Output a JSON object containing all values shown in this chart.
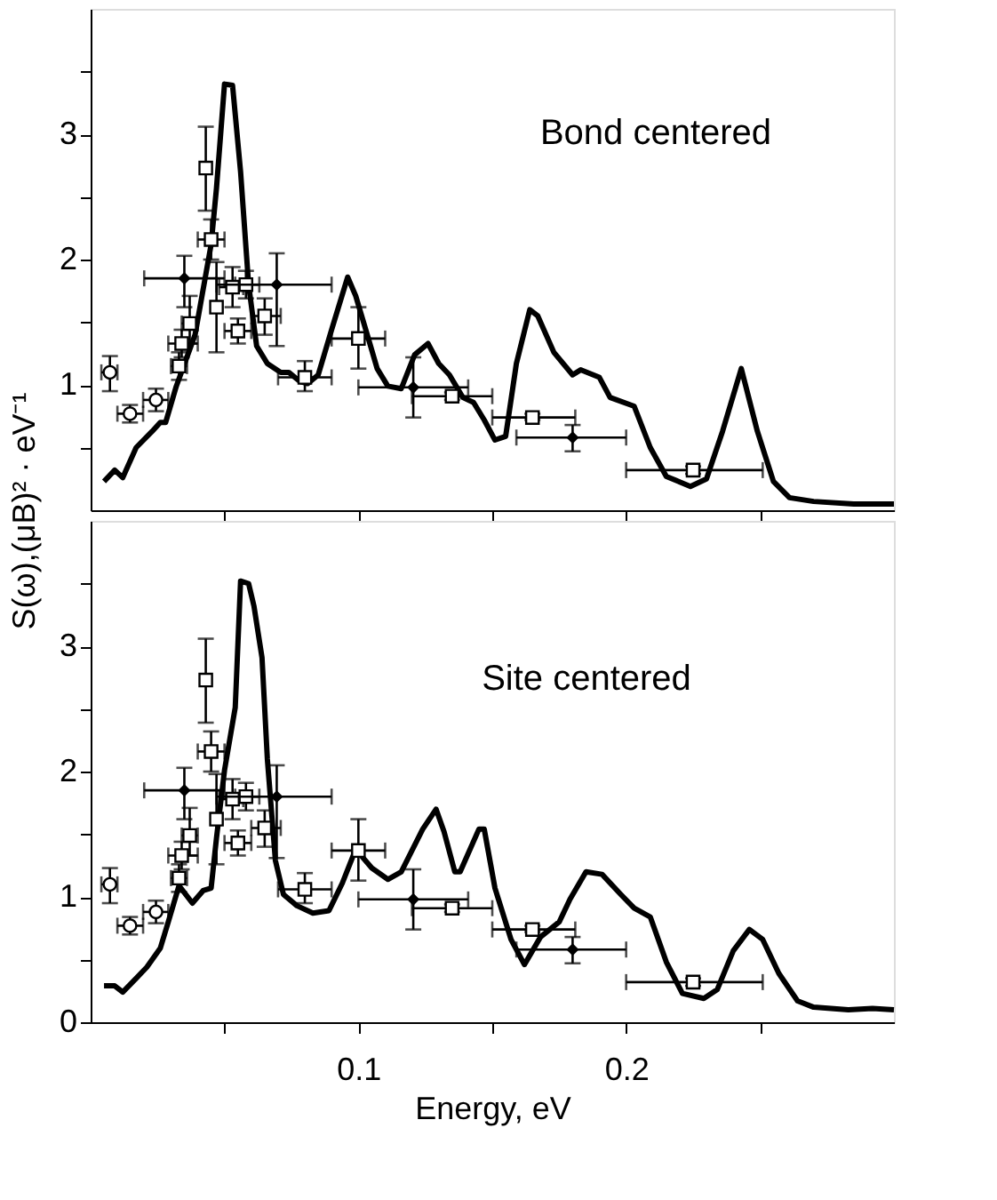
{
  "chart_data": [
    {
      "type": "line",
      "ylabel": "S(ω),(μB)² · eV⁻¹",
      "annotations": [
        "Bond centered"
      ],
      "xlim": [
        0,
        0.3
      ],
      "ylim": [
        0,
        4
      ],
      "xticks": [
        {
          "value": 0.05,
          "label": null
        },
        {
          "value": 0.1,
          "label": null
        },
        {
          "value": 0.15,
          "label": null
        },
        {
          "value": 0.2,
          "label": null
        },
        {
          "value": 0.25,
          "label": null
        }
      ],
      "yticks": [
        {
          "value": 0.5,
          "label": null
        },
        1,
        {
          "value": 1.5,
          "label": null
        },
        2,
        {
          "value": 2.5,
          "label": null
        },
        3,
        {
          "value": 3.5,
          "label": null
        }
      ],
      "tick_labels": "y",
      "grid": false,
      "series": [
        {
          "type": "line",
          "color": "#000000",
          "marker": "none",
          "line_style": "solid",
          "x": [
            0.005,
            0.009,
            0.012,
            0.017,
            0.023,
            0.026,
            0.028,
            0.032,
            0.039,
            0.045,
            0.047,
            0.05,
            0.053,
            0.056,
            0.059,
            0.062,
            0.066,
            0.071,
            0.074,
            0.078,
            0.081,
            0.085,
            0.09,
            0.096,
            0.099,
            0.104,
            0.107,
            0.111,
            0.116,
            0.121,
            0.126,
            0.13,
            0.134,
            0.139,
            0.143,
            0.147,
            0.151,
            0.155,
            0.159,
            0.164,
            0.167,
            0.173,
            0.18,
            0.183,
            0.19,
            0.194,
            0.203,
            0.209,
            0.215,
            0.224,
            0.23,
            0.236,
            0.243,
            0.249,
            0.255,
            0.261,
            0.27,
            0.285,
            0.3
          ],
          "values": [
            0.23,
            0.32,
            0.26,
            0.5,
            0.63,
            0.7,
            0.7,
            0.99,
            1.4,
            2.12,
            2.57,
            3.4,
            3.39,
            2.7,
            1.8,
            1.31,
            1.17,
            1.1,
            1.1,
            1.03,
            1.01,
            1.08,
            1.44,
            1.86,
            1.71,
            1.35,
            1.13,
            0.99,
            0.97,
            1.24,
            1.33,
            1.17,
            1.08,
            0.9,
            0.86,
            0.72,
            0.56,
            0.59,
            1.17,
            1.6,
            1.55,
            1.26,
            1.08,
            1.12,
            1.06,
            0.9,
            0.83,
            0.5,
            0.27,
            0.19,
            0.25,
            0.63,
            1.13,
            0.63,
            0.23,
            0.1,
            0.07,
            0.05,
            0.05
          ]
        },
        {
          "type": "scatter",
          "color": "#000000",
          "marker": "circle",
          "x": [
            0.0072,
            0.0147,
            0.0244
          ],
          "values": [
            1.1,
            0.77,
            0.88
          ],
          "errors": [
            [
              0.95,
              1.23
            ],
            [
              0.7,
              0.84
            ],
            [
              0.79,
              0.97
            ]
          ],
          "xerrors": [
            [
              0.004,
              0.01
            ],
            [
              0.01,
              0.0196
            ],
            [
              0.0196,
              0.029
            ]
          ]
        },
        {
          "type": "scatter",
          "color": "#000000",
          "marker": "square",
          "x": [
            0.033,
            0.034,
            0.037,
            0.043,
            0.045,
            0.047,
            0.053,
            0.055,
            0.058,
            0.065,
            0.08,
            0.1,
            0.135,
            0.165,
            0.225
          ],
          "values": [
            1.15,
            1.33,
            1.49,
            2.73,
            2.16,
            1.62,
            1.78,
            1.43,
            1.8,
            1.55,
            1.06,
            1.37,
            0.91,
            0.74,
            0.32
          ],
          "errors": [
            [
              1.04,
              1.26
            ],
            [
              1.22,
              1.44
            ],
            [
              1.33,
              1.71
            ],
            [
              2.39,
              3.06
            ],
            [
              2.0,
              2.32
            ],
            [
              1.26,
              1.98
            ],
            [
              1.62,
              1.94
            ],
            [
              1.33,
              1.53
            ],
            [
              1.69,
              1.91
            ],
            [
              1.4,
              1.69
            ],
            [
              0.95,
              1.19
            ],
            [
              1.13,
              1.62
            ],
            [
              0.88,
              0.94
            ],
            [
              0.72,
              0.77
            ],
            [
              0.29,
              0.35
            ]
          ],
          "xerrors": [
            [
              0.03,
              0.036
            ],
            [
              0.029,
              0.04
            ],
            [
              0.034,
              0.04
            ],
            null,
            [
              0.04,
              0.05
            ],
            null,
            [
              0.048,
              0.057
            ],
            [
              0.05,
              0.06
            ],
            [
              0.054,
              0.063
            ],
            [
              0.06,
              0.071
            ],
            [
              0.07,
              0.09
            ],
            [
              0.09,
              0.11
            ],
            [
              0.12,
              0.15
            ],
            [
              0.15,
              0.181
            ],
            [
              0.2,
              0.251
            ]
          ]
        },
        {
          "type": "scatter",
          "color": "#000000",
          "marker": "diamond",
          "x": [
            0.035,
            0.0695,
            0.1205,
            0.18
          ],
          "values": [
            1.85,
            1.8,
            0.98,
            0.58
          ],
          "errors": [
            [
              1.62,
              2.03
            ],
            [
              1.31,
              2.05
            ],
            [
              0.74,
              1.22
            ],
            [
              0.47,
              0.68
            ]
          ],
          "xerrors": [
            [
              0.02,
              0.05
            ],
            [
              0.047,
              0.09
            ],
            [
              0.1,
              0.141
            ],
            [
              0.159,
              0.2
            ]
          ]
        }
      ]
    },
    {
      "type": "line",
      "xlabel": "Energy, eV",
      "annotations": [
        "Site centered"
      ],
      "xlim": [
        0,
        0.3
      ],
      "ylim": [
        0,
        4
      ],
      "xticks": [
        {
          "value": 0.05,
          "label": null
        },
        0.1,
        {
          "value": 0.15,
          "label": null
        },
        0.2,
        {
          "value": 0.25,
          "label": null
        }
      ],
      "yticks": [
        0,
        {
          "value": 0.5,
          "label": null
        },
        1,
        {
          "value": 1.5,
          "label": null
        },
        2,
        {
          "value": 2.5,
          "label": null
        },
        3,
        {
          "value": 3.5,
          "label": null
        }
      ],
      "grid": false,
      "series": [
        {
          "type": "line",
          "color": "#000000",
          "marker": "none",
          "line_style": "solid",
          "x": [
            0.005,
            0.009,
            0.012,
            0.017,
            0.021,
            0.026,
            0.029,
            0.033,
            0.038,
            0.042,
            0.045,
            0.047,
            0.05,
            0.054,
            0.056,
            0.059,
            0.061,
            0.064,
            0.066,
            0.069,
            0.072,
            0.077,
            0.083,
            0.089,
            0.094,
            0.099,
            0.105,
            0.111,
            0.116,
            0.124,
            0.129,
            0.132,
            0.136,
            0.138,
            0.145,
            0.147,
            0.151,
            0.157,
            0.162,
            0.168,
            0.175,
            0.179,
            0.185,
            0.191,
            0.198,
            0.203,
            0.209,
            0.215,
            0.221,
            0.229,
            0.234,
            0.24,
            0.246,
            0.251,
            0.257,
            0.264,
            0.27,
            0.283,
            0.292,
            0.3
          ],
          "values": [
            0.29,
            0.29,
            0.24,
            0.35,
            0.44,
            0.59,
            0.8,
            1.09,
            0.95,
            1.05,
            1.07,
            1.47,
            2.01,
            2.51,
            3.52,
            3.5,
            3.32,
            2.91,
            2.1,
            1.29,
            1.02,
            0.93,
            0.87,
            0.89,
            1.11,
            1.38,
            1.23,
            1.14,
            1.2,
            1.54,
            1.7,
            1.52,
            1.2,
            1.2,
            1.54,
            1.54,
            1.07,
            0.66,
            0.46,
            0.68,
            0.8,
            0.98,
            1.2,
            1.18,
            1.02,
            0.91,
            0.84,
            0.48,
            0.23,
            0.19,
            0.26,
            0.57,
            0.74,
            0.66,
            0.39,
            0.17,
            0.12,
            0.1,
            0.11,
            0.1
          ]
        },
        {
          "type": "scatter",
          "color": "#000000",
          "marker": "circle",
          "x": [
            0.0072,
            0.0147,
            0.0244
          ],
          "values": [
            1.1,
            0.77,
            0.88
          ],
          "errors": [
            [
              0.95,
              1.23
            ],
            [
              0.7,
              0.84
            ],
            [
              0.79,
              0.97
            ]
          ],
          "xerrors": [
            [
              0.004,
              0.01
            ],
            [
              0.01,
              0.0196
            ],
            [
              0.0196,
              0.029
            ]
          ]
        },
        {
          "type": "scatter",
          "color": "#000000",
          "marker": "square",
          "x": [
            0.033,
            0.034,
            0.037,
            0.043,
            0.045,
            0.047,
            0.053,
            0.055,
            0.058,
            0.065,
            0.08,
            0.1,
            0.135,
            0.165,
            0.225
          ],
          "values": [
            1.15,
            1.33,
            1.49,
            2.73,
            2.16,
            1.62,
            1.78,
            1.43,
            1.8,
            1.55,
            1.06,
            1.37,
            0.91,
            0.74,
            0.32
          ],
          "errors": [
            [
              1.04,
              1.26
            ],
            [
              1.22,
              1.44
            ],
            [
              1.33,
              1.71
            ],
            [
              2.39,
              3.06
            ],
            [
              2.0,
              2.32
            ],
            [
              1.26,
              1.98
            ],
            [
              1.62,
              1.94
            ],
            [
              1.33,
              1.53
            ],
            [
              1.69,
              1.91
            ],
            [
              1.4,
              1.69
            ],
            [
              0.95,
              1.19
            ],
            [
              1.13,
              1.62
            ],
            [
              0.88,
              0.94
            ],
            [
              0.72,
              0.77
            ],
            [
              0.29,
              0.35
            ]
          ],
          "xerrors": [
            [
              0.03,
              0.036
            ],
            [
              0.029,
              0.04
            ],
            [
              0.034,
              0.04
            ],
            null,
            [
              0.04,
              0.05
            ],
            null,
            [
              0.048,
              0.057
            ],
            [
              0.05,
              0.06
            ],
            [
              0.054,
              0.063
            ],
            [
              0.06,
              0.071
            ],
            [
              0.07,
              0.09
            ],
            [
              0.09,
              0.11
            ],
            [
              0.12,
              0.15
            ],
            [
              0.15,
              0.181
            ],
            [
              0.2,
              0.251
            ]
          ]
        },
        {
          "type": "scatter",
          "color": "#000000",
          "marker": "diamond",
          "x": [
            0.035,
            0.0695,
            0.1205,
            0.18
          ],
          "values": [
            1.85,
            1.8,
            0.98,
            0.58
          ],
          "errors": [
            [
              1.62,
              2.03
            ],
            [
              1.31,
              2.05
            ],
            [
              0.74,
              1.22
            ],
            [
              0.47,
              0.68
            ]
          ],
          "xerrors": [
            [
              0.02,
              0.05
            ],
            [
              0.047,
              0.09
            ],
            [
              0.1,
              0.141
            ],
            [
              0.159,
              0.2
            ]
          ]
        }
      ]
    }
  ]
}
